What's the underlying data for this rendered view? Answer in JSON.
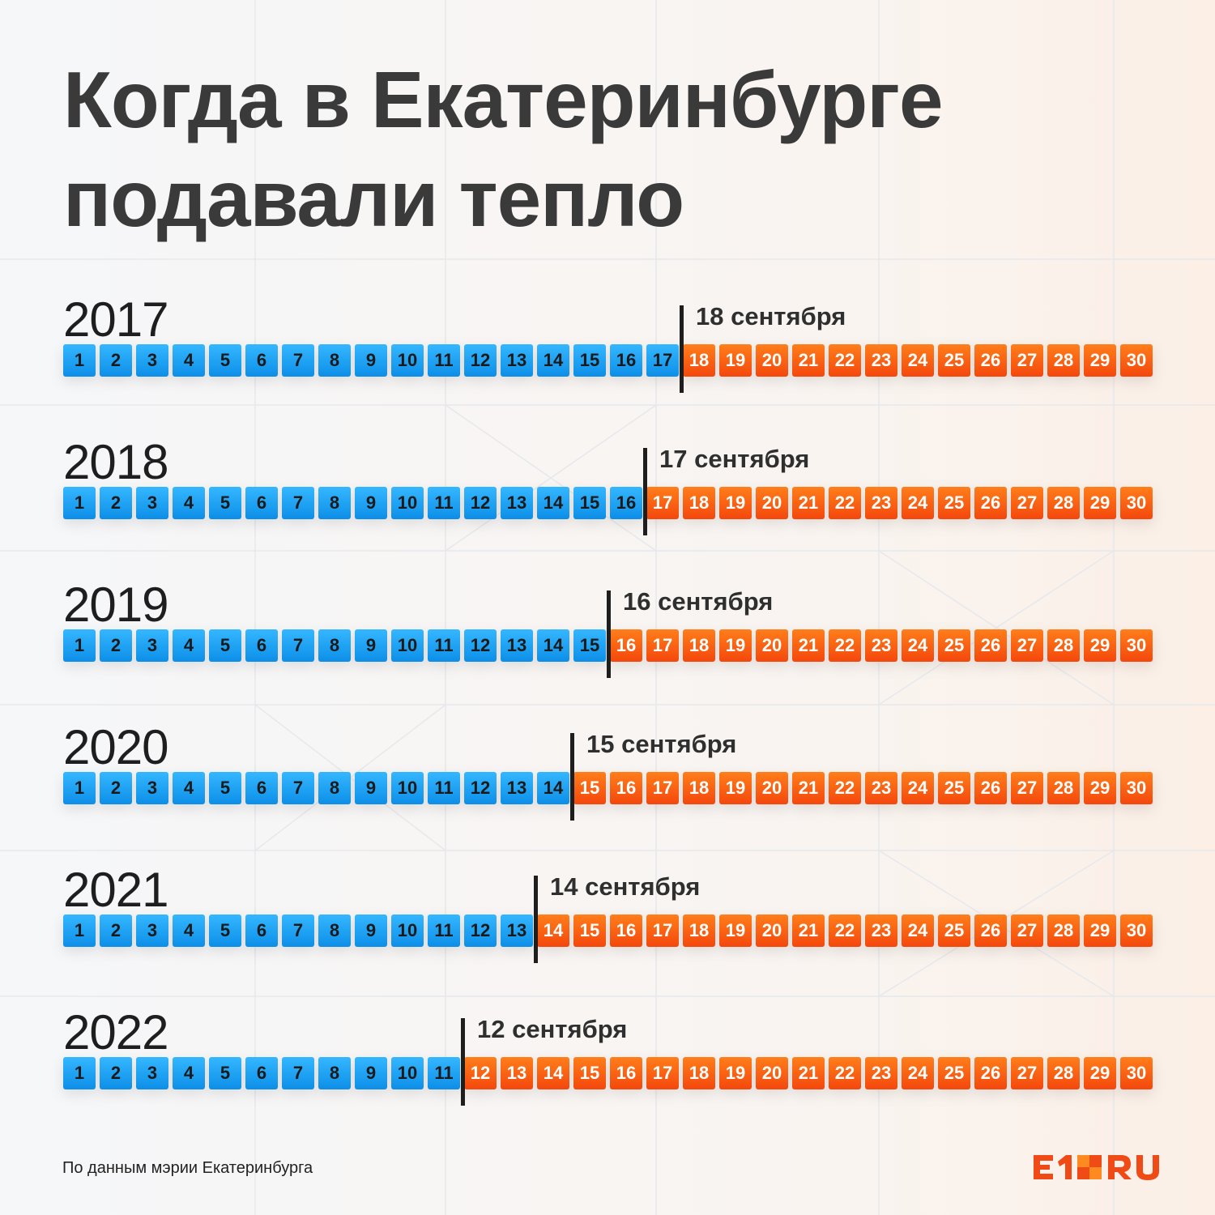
{
  "title": {
    "line1": "Когда в Екатеринбурге",
    "line2": "подавали тепло"
  },
  "chart_data": {
    "type": "table",
    "days": [
      1,
      2,
      3,
      4,
      5,
      6,
      7,
      8,
      9,
      10,
      11,
      12,
      13,
      14,
      15,
      16,
      17,
      18,
      19,
      20,
      21,
      22,
      23,
      24,
      25,
      26,
      27,
      28,
      29,
      30
    ],
    "rows": [
      {
        "year": "2017",
        "start_day": 18,
        "label": "18 сентября"
      },
      {
        "year": "2018",
        "start_day": 17,
        "label": "17 сентября"
      },
      {
        "year": "2019",
        "start_day": 16,
        "label": "16 сентября"
      },
      {
        "year": "2020",
        "start_day": 15,
        "label": "15 сентября"
      },
      {
        "year": "2021",
        "start_day": 14,
        "label": "14 сентября"
      },
      {
        "year": "2022",
        "start_day": 12,
        "label": "12 сентября"
      }
    ],
    "colors": {
      "before": "#1a9df5",
      "after": "#f85c10"
    }
  },
  "footer": {
    "source": "По данным мэрии Екатеринбурга"
  },
  "logo": {
    "text": "E1.RU",
    "brand_color": "#f04a17",
    "accent_color": "#ff8a20"
  }
}
